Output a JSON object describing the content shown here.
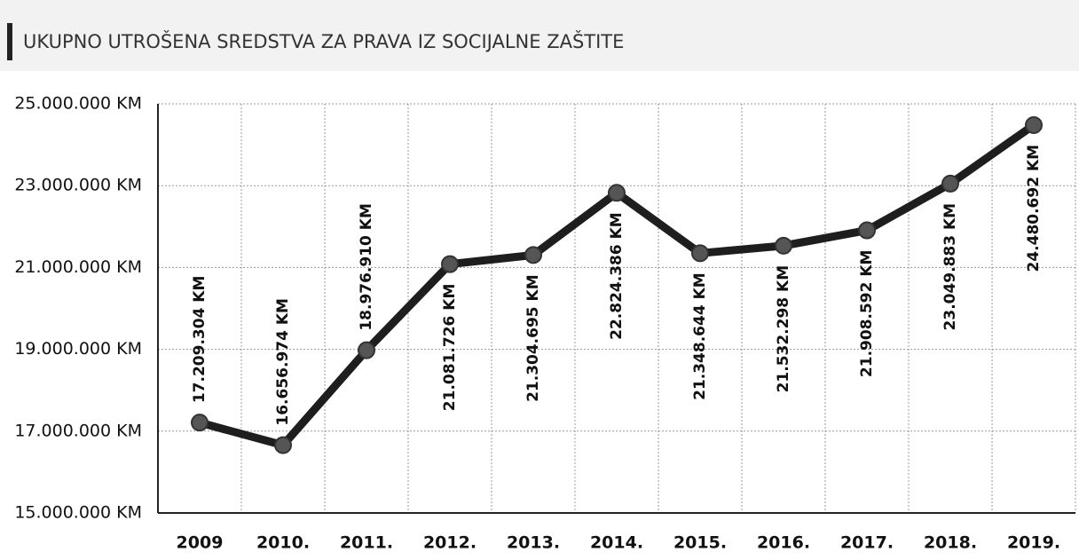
{
  "chart_data": {
    "type": "line",
    "title": "UKUPNO UTROŠENA SREDSTVA ZA PRAVA IZ SOCIJALNE ZAŠTITE",
    "categories": [
      "2009",
      "2010.",
      "2011.",
      "2012.",
      "2013.",
      "2014.",
      "2015.",
      "2016.",
      "2017.",
      "2018.",
      "2019."
    ],
    "series": [
      {
        "color": "#1e1e1e",
        "values": [
          17209304,
          16656974,
          18976910,
          21081726,
          21304695,
          22824386,
          21348644,
          21532298,
          21908592,
          23049883,
          24480692
        ],
        "value_labels": [
          "17.209.304 KM",
          "16.656.974 KM",
          "18.976.910 KM",
          "21.081.726 KM",
          "21.304.695 KM",
          "22.824.386 KM",
          "21.348.644 KM",
          "21.532.298 KM",
          "21.908.592 KM",
          "23.049.883 KM",
          "24.480.692 KM"
        ]
      }
    ],
    "ylim": [
      15000000,
      25000000
    ],
    "yticks": [
      {
        "value": 15000000,
        "label": "15.000.000 KM"
      },
      {
        "value": 17000000,
        "label": "17.000.000 KM"
      },
      {
        "value": 19000000,
        "label": "19.000.000 KM"
      },
      {
        "value": 21000000,
        "label": "21.000.000 KM"
      },
      {
        "value": 23000000,
        "label": "23.000.000 KM"
      },
      {
        "value": 25000000,
        "label": "25.000.000 KM"
      }
    ],
    "grid": true
  }
}
